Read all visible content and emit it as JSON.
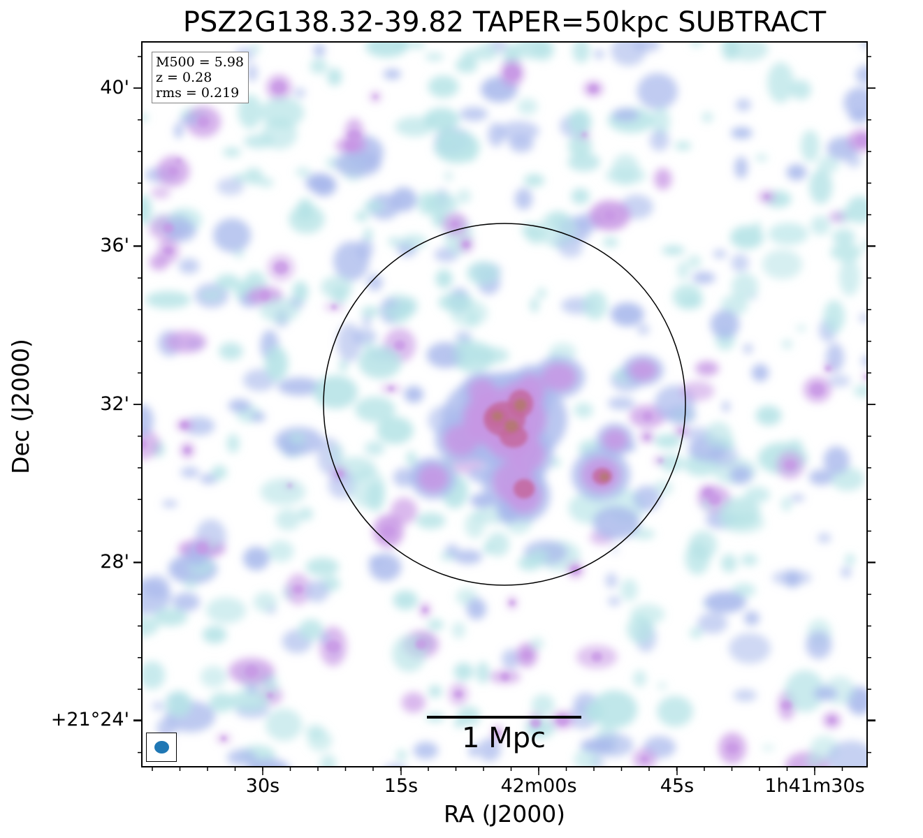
{
  "figure": {
    "title": "PSZ2G138.32-39.82 TAPER=50kpc SUBTRACT",
    "xlabel": "RA (J2000)",
    "ylabel": "Dec (J2000)",
    "yticks": [
      "40'",
      "36'",
      "32'",
      "28'",
      "+21°24'"
    ],
    "xticks": [
      "30s",
      "15s",
      "42m00s",
      "45s",
      "1h41m30s"
    ]
  },
  "info": {
    "m500": "M500 = 5.98",
    "z": "z = 0.28",
    "rms": "rms = 0.219"
  },
  "scalebar": {
    "label": "1 Mpc"
  },
  "beam": {
    "color": "#1f77b4"
  },
  "colors": {
    "faint": "#b5e3e6",
    "low": "#a9b9ec",
    "mid": "#c796e4",
    "high": "#c4699e",
    "peak": "#b47a6e"
  }
}
